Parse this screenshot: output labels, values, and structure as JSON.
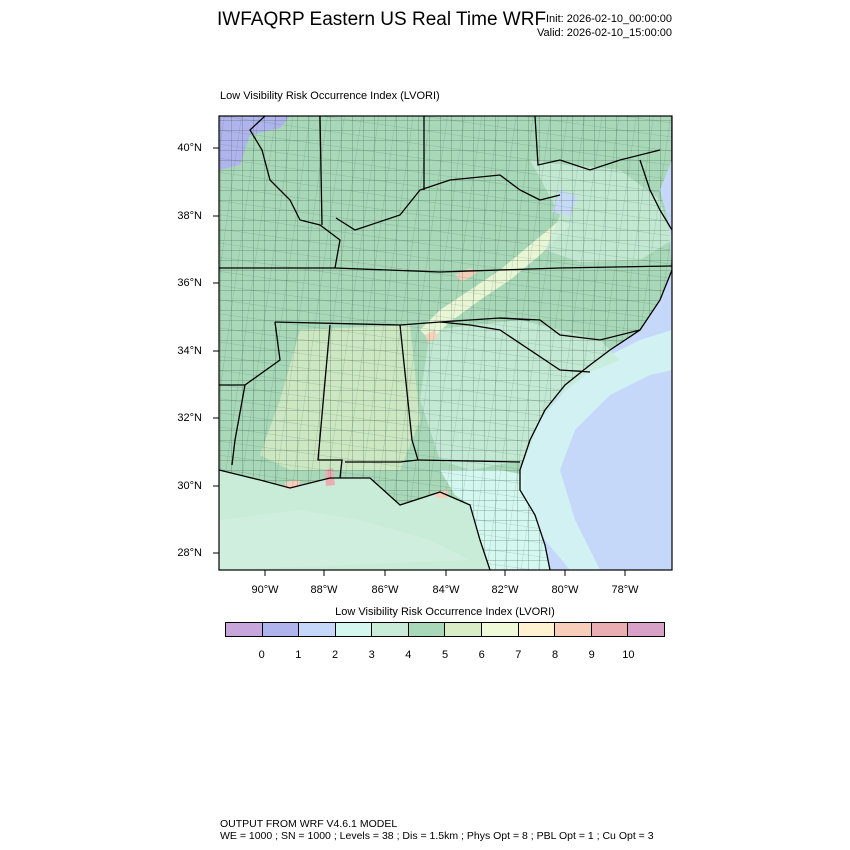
{
  "header": {
    "title": "IWFAQRP Eastern US Real Time WRF",
    "init": "Init: 2026-02-10_00:00:00",
    "valid": "Valid: 2026-02-10_15:00:00"
  },
  "map": {
    "subtitle": "Low Visibility Risk Occurrence Index   (LVORI)",
    "region": "Eastern US (Southeast)",
    "lat_range": [
      27.6,
      41.0
    ],
    "lon_range": [
      -91.6,
      -76.4
    ],
    "lat_labels": [
      {
        "lat": 40,
        "text": "40°N"
      },
      {
        "lat": 38,
        "text": "38°N"
      },
      {
        "lat": 36,
        "text": "36°N"
      },
      {
        "lat": 34,
        "text": "34°N"
      },
      {
        "lat": 32,
        "text": "32°N"
      },
      {
        "lat": 30,
        "text": "30°N"
      },
      {
        "lat": 28,
        "text": "28°N"
      }
    ],
    "lon_labels": [
      {
        "lon": -90,
        "text": "90°W"
      },
      {
        "lon": -88,
        "text": "88°W"
      },
      {
        "lon": -86,
        "text": "86°W"
      },
      {
        "lon": -84,
        "text": "84°W"
      },
      {
        "lon": -82,
        "text": "82°W"
      },
      {
        "lon": -80,
        "text": "80°W"
      },
      {
        "lon": -78,
        "text": "78°W"
      }
    ],
    "dominant_levels": {
      "land_interior": 5,
      "florida_peninsula": 3,
      "atlantic_ocean": 2,
      "gulf_coastal_water": 4,
      "appalachian_ridge": 7
    }
  },
  "legend": {
    "title": "Low Visibility Risk Occurrence Index  (LVORI)",
    "colors": [
      "#c8a6dc",
      "#b0b4ec",
      "#c6d8fa",
      "#d4f8f0",
      "#c8ecd8",
      "#a8d8b8",
      "#d8ecc6",
      "#f0fad8",
      "#fef2d0",
      "#f8ceba",
      "#eaaeb2",
      "#d8a2c8"
    ],
    "ticks": [
      "0",
      "1",
      "2",
      "3",
      "4",
      "5",
      "6",
      "7",
      "8",
      "9",
      "10"
    ]
  },
  "footer": {
    "line1": "OUTPUT FROM WRF V4.6.1 MODEL",
    "line2": "WE = 1000 ; SN = 1000 ; Levels = 38 ; Dis = 1.5km ; Phys Opt = 8 ; PBL Opt = 1 ; Cu Opt = 3"
  }
}
